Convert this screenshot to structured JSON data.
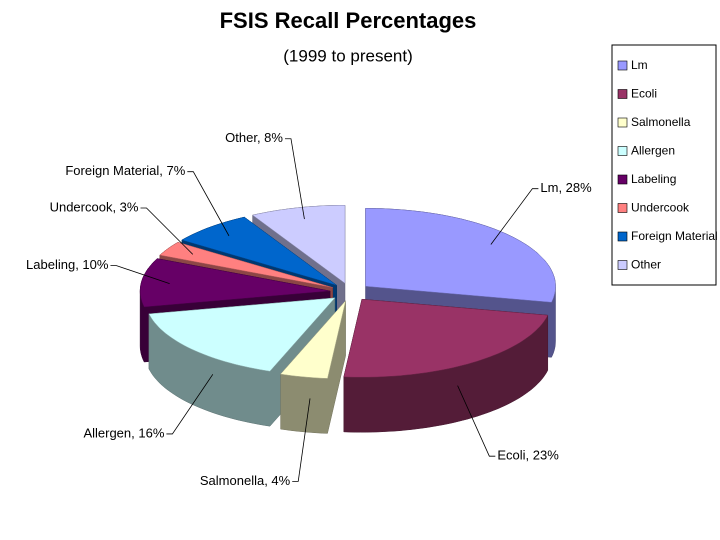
{
  "chart_data": {
    "type": "pie",
    "title": "FSIS Recall Percentages",
    "subtitle": "(1999 to present)",
    "categories": [
      "Lm",
      "Ecoli",
      "Salmonella",
      "Allergen",
      "Labeling",
      "Undercook",
      "Foreign Material",
      "Other"
    ],
    "values": [
      28,
      23,
      4,
      16,
      10,
      3,
      7,
      8
    ],
    "value_labels": [
      "Lm, 28%",
      "Ecoli, 23%",
      "Salmonella, 4%",
      "Allergen, 16%",
      "Labeling, 10%",
      "Undercook, 3%",
      "Foreign Material, 7%",
      "Other, 8%"
    ],
    "colors": [
      "#9999ff",
      "#993366",
      "#ffffcc",
      "#ccffff",
      "#660066",
      "#ff8080",
      "#0066cc",
      "#ccccff"
    ],
    "legend": "right"
  }
}
